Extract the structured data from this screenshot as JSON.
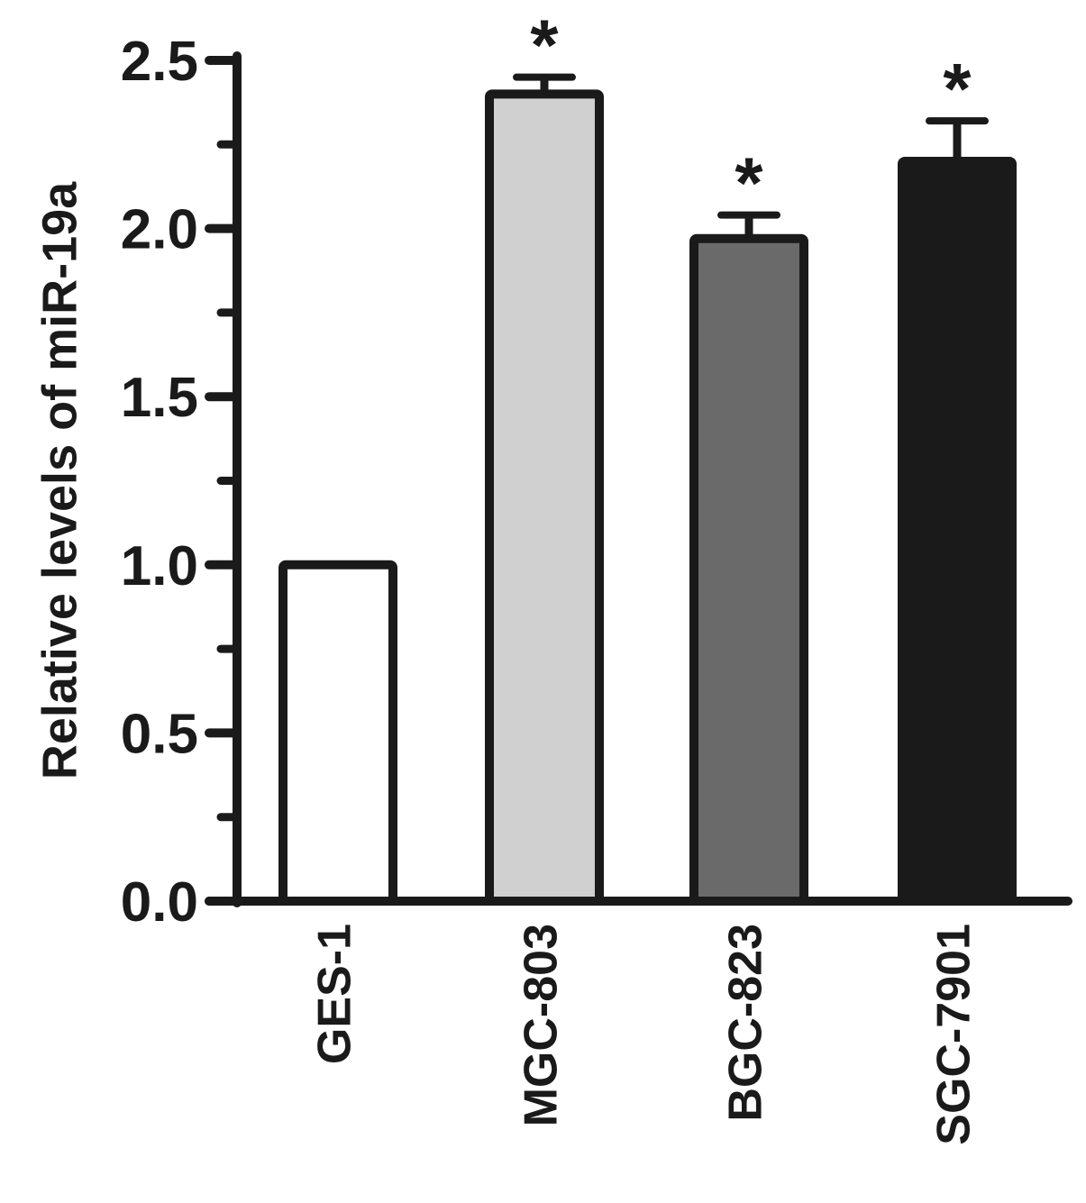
{
  "chart_data": {
    "type": "bar",
    "categories": [
      "GES-1",
      "MGC-803",
      "BGC-823",
      "SGC-7901"
    ],
    "values": [
      1.0,
      2.4,
      1.97,
      2.2
    ],
    "errors": [
      0.0,
      0.05,
      0.07,
      0.12
    ],
    "significance": [
      "",
      "*",
      "*",
      "*"
    ],
    "bar_colors": [
      "#ffffff",
      "#d0d0d0",
      "#6a6a6a",
      "#1a1a1a"
    ],
    "title": "",
    "xlabel": "",
    "ylabel": "Relative levels of miR-19a",
    "ylim": [
      0,
      2.5
    ],
    "yticks": [
      "0.0",
      "0.5",
      "1.0",
      "1.5",
      "2.0",
      "2.5"
    ],
    "grid": false,
    "legend": "none"
  }
}
